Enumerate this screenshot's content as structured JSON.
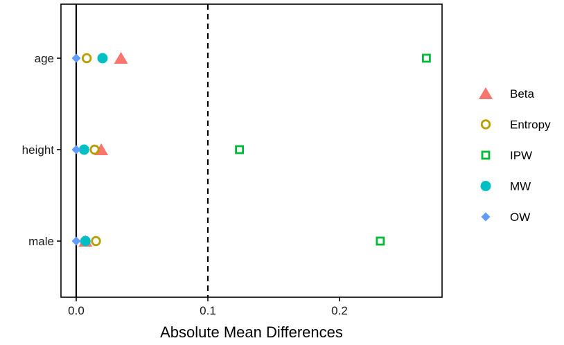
{
  "chart_data": {
    "type": "scatter",
    "title": "",
    "xlabel": "Absolute Mean Differences",
    "ylabel": "",
    "categories": [
      "age",
      "height",
      "male"
    ],
    "xlim": [
      -0.012,
      0.2775
    ],
    "x_ticks": [
      {
        "value": 0.0,
        "label": "0.0"
      },
      {
        "value": 0.1,
        "label": "0.1"
      },
      {
        "value": 0.2,
        "label": "0.2"
      }
    ],
    "reference_lines": [
      {
        "x": 0,
        "style": "solid"
      },
      {
        "x": 0.1,
        "style": "dashed"
      }
    ],
    "grid": false,
    "legend_position": "right",
    "series": [
      {
        "name": "Beta",
        "shape": "triangle",
        "color": "#F8766D",
        "values": [
          0.034,
          0.019,
          0.007
        ]
      },
      {
        "name": "Entropy",
        "shape": "circle-open",
        "color": "#B79F00",
        "values": [
          0.008,
          0.014,
          0.015
        ]
      },
      {
        "name": "IPW",
        "shape": "square-open",
        "color": "#00BA38",
        "values": [
          0.266,
          0.124,
          0.231
        ]
      },
      {
        "name": "MW",
        "shape": "circle",
        "color": "#00BFC4",
        "values": [
          0.02,
          0.006,
          0.007
        ]
      },
      {
        "name": "OW",
        "shape": "diamond",
        "color": "#619CFF",
        "values": [
          0.0,
          0.0,
          0.0
        ]
      }
    ]
  }
}
